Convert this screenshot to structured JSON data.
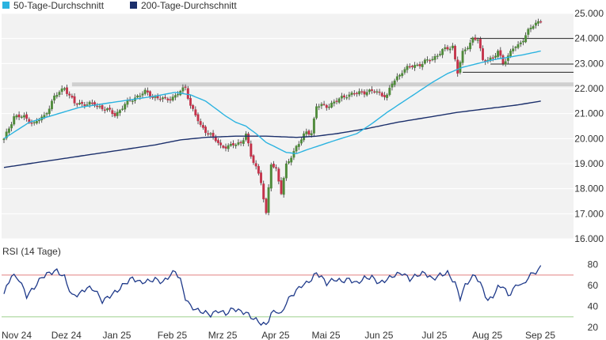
{
  "legend": {
    "sma50_label": "50-Tage-Durchschnitt",
    "sma200_label": "200-Tage-Durchschnitt"
  },
  "rsi_panel": {
    "title": "RSI (14 Tage)",
    "yticks": [
      "80",
      "60",
      "40",
      "20"
    ]
  },
  "colors": {
    "up": "#4f8a3a",
    "down": "#c4324a",
    "sma50": "#2bb3e0",
    "sma200": "#1b2f6b",
    "rsi_line": "#1f3a8a",
    "rsi_upper": "#e08080",
    "rsi_lower": "#9fd18f",
    "plot_bg": "#f2f2f2"
  },
  "chart_data": [
    {
      "type": "candlestick",
      "ylim": [
        16000,
        25000
      ],
      "yticks": [
        "25.000",
        "24.000",
        "23.000",
        "22.000",
        "21.000",
        "20.000",
        "19.000",
        "18.000",
        "17.000",
        "16.000"
      ],
      "xticks": [
        "Nov 24",
        "Dez 24",
        "Jan 25",
        "Feb 25",
        "Mrz 25",
        "Apr 25",
        "Mai 25",
        "Jun 25",
        "Jul 25",
        "Aug 25",
        "Sep 25"
      ],
      "xtick_pos": [
        0,
        21,
        41,
        63,
        83,
        104,
        124,
        145,
        167,
        188,
        209
      ],
      "n_days": 221,
      "horizontal_lines": [
        {
          "y": 22150,
          "x_from": 27,
          "x_to": 221,
          "style": "support-band"
        },
        {
          "y": 24000,
          "x_from": 185,
          "x_to": 221
        },
        {
          "y": 22980,
          "x_from": 193,
          "x_to": 221
        },
        {
          "y": 22650,
          "x_from": 182,
          "x_to": 221
        }
      ],
      "price_anchors": [
        [
          0,
          19950
        ],
        [
          4,
          20900
        ],
        [
          8,
          20850
        ],
        [
          12,
          20600
        ],
        [
          16,
          20900
        ],
        [
          20,
          21650
        ],
        [
          24,
          22050
        ],
        [
          28,
          21400
        ],
        [
          32,
          21400
        ],
        [
          36,
          21350
        ],
        [
          40,
          21200
        ],
        [
          44,
          20950
        ],
        [
          48,
          21350
        ],
        [
          52,
          21650
        ],
        [
          56,
          21850
        ],
        [
          60,
          21650
        ],
        [
          64,
          21550
        ],
        [
          68,
          21700
        ],
        [
          72,
          22050
        ],
        [
          74,
          21350
        ],
        [
          78,
          20500
        ],
        [
          82,
          20150
        ],
        [
          86,
          19700
        ],
        [
          90,
          19700
        ],
        [
          94,
          19850
        ],
        [
          96,
          20200
        ],
        [
          98,
          19250
        ],
        [
          100,
          18900
        ],
        [
          102,
          18300
        ],
        [
          104,
          16950
        ],
        [
          106,
          19000
        ],
        [
          108,
          18800
        ],
        [
          110,
          17850
        ],
        [
          112,
          18900
        ],
        [
          114,
          19300
        ],
        [
          116,
          19700
        ],
        [
          118,
          19950
        ],
        [
          120,
          20250
        ],
        [
          122,
          20250
        ],
        [
          124,
          21300
        ],
        [
          128,
          21300
        ],
        [
          132,
          21500
        ],
        [
          136,
          21750
        ],
        [
          140,
          21800
        ],
        [
          144,
          21900
        ],
        [
          148,
          21850
        ],
        [
          152,
          21700
        ],
        [
          154,
          22200
        ],
        [
          158,
          22700
        ],
        [
          162,
          22900
        ],
        [
          166,
          23000
        ],
        [
          170,
          23200
        ],
        [
          174,
          23500
        ],
        [
          178,
          23700
        ],
        [
          180,
          22650
        ],
        [
          182,
          23400
        ],
        [
          184,
          23700
        ],
        [
          186,
          24000
        ],
        [
          188,
          23950
        ],
        [
          190,
          23100
        ],
        [
          192,
          23200
        ],
        [
          194,
          23200
        ],
        [
          196,
          23450
        ],
        [
          198,
          23050
        ],
        [
          200,
          23300
        ],
        [
          202,
          23600
        ],
        [
          204,
          23700
        ],
        [
          206,
          24000
        ],
        [
          208,
          24300
        ],
        [
          210,
          24500
        ],
        [
          213,
          24750
        ]
      ],
      "sma50": [
        [
          0,
          20000
        ],
        [
          10,
          20650
        ],
        [
          20,
          20950
        ],
        [
          30,
          21250
        ],
        [
          40,
          21400
        ],
        [
          50,
          21550
        ],
        [
          60,
          21700
        ],
        [
          68,
          21850
        ],
        [
          74,
          21750
        ],
        [
          80,
          21500
        ],
        [
          84,
          21200
        ],
        [
          88,
          20900
        ],
        [
          92,
          20650
        ],
        [
          96,
          20500
        ],
        [
          100,
          20200
        ],
        [
          104,
          19850
        ],
        [
          108,
          19650
        ],
        [
          112,
          19450
        ],
        [
          116,
          19400
        ],
        [
          120,
          19550
        ],
        [
          126,
          19750
        ],
        [
          132,
          19950
        ],
        [
          140,
          20200
        ],
        [
          146,
          20600
        ],
        [
          152,
          21050
        ],
        [
          158,
          21450
        ],
        [
          164,
          21850
        ],
        [
          170,
          22250
        ],
        [
          176,
          22600
        ],
        [
          182,
          22850
        ],
        [
          188,
          23000
        ],
        [
          194,
          23150
        ],
        [
          200,
          23250
        ],
        [
          206,
          23350
        ],
        [
          213,
          23500
        ]
      ],
      "sma200": [
        [
          0,
          18850
        ],
        [
          20,
          19150
        ],
        [
          40,
          19450
        ],
        [
          60,
          19750
        ],
        [
          70,
          19950
        ],
        [
          80,
          20050
        ],
        [
          92,
          20100
        ],
        [
          104,
          20100
        ],
        [
          116,
          20050
        ],
        [
          124,
          20100
        ],
        [
          132,
          20200
        ],
        [
          144,
          20400
        ],
        [
          156,
          20650
        ],
        [
          168,
          20850
        ],
        [
          180,
          21050
        ],
        [
          192,
          21200
        ],
        [
          204,
          21350
        ],
        [
          213,
          21500
        ]
      ]
    },
    {
      "type": "line",
      "title": "RSI (14 Tage)",
      "ylim": [
        20,
        85
      ],
      "yticks": [
        80,
        60,
        40,
        20
      ],
      "reference_lines": [
        70,
        30
      ],
      "rsi_anchors": [
        [
          0,
          52
        ],
        [
          3,
          70
        ],
        [
          6,
          66
        ],
        [
          9,
          50
        ],
        [
          12,
          58
        ],
        [
          15,
          68
        ],
        [
          18,
          72
        ],
        [
          21,
          74
        ],
        [
          24,
          68
        ],
        [
          27,
          50
        ],
        [
          30,
          52
        ],
        [
          33,
          58
        ],
        [
          36,
          56
        ],
        [
          39,
          45
        ],
        [
          42,
          50
        ],
        [
          45,
          55
        ],
        [
          48,
          62
        ],
        [
          51,
          67
        ],
        [
          54,
          63
        ],
        [
          57,
          64
        ],
        [
          60,
          66
        ],
        [
          63,
          63
        ],
        [
          66,
          70
        ],
        [
          68,
          74
        ],
        [
          70,
          65
        ],
        [
          72,
          48
        ],
        [
          74,
          40
        ],
        [
          77,
          36
        ],
        [
          80,
          34
        ],
        [
          82,
          32
        ],
        [
          85,
          36
        ],
        [
          88,
          33
        ],
        [
          91,
          38
        ],
        [
          94,
          35
        ],
        [
          96,
          34
        ],
        [
          98,
          30
        ],
        [
          100,
          27
        ],
        [
          102,
          24
        ],
        [
          104,
          22
        ],
        [
          106,
          33
        ],
        [
          108,
          36
        ],
        [
          110,
          32
        ],
        [
          112,
          44
        ],
        [
          114,
          50
        ],
        [
          116,
          55
        ],
        [
          118,
          60
        ],
        [
          120,
          62
        ],
        [
          122,
          66
        ],
        [
          124,
          72
        ],
        [
          126,
          68
        ],
        [
          128,
          62
        ],
        [
          131,
          66
        ],
        [
          134,
          64
        ],
        [
          137,
          66
        ],
        [
          140,
          62
        ],
        [
          143,
          67
        ],
        [
          146,
          68
        ],
        [
          149,
          62
        ],
        [
          152,
          66
        ],
        [
          155,
          70
        ],
        [
          158,
          72
        ],
        [
          161,
          66
        ],
        [
          164,
          70
        ],
        [
          167,
          72
        ],
        [
          170,
          66
        ],
        [
          173,
          70
        ],
        [
          176,
          72
        ],
        [
          179,
          62
        ],
        [
          181,
          48
        ],
        [
          183,
          60
        ],
        [
          185,
          66
        ],
        [
          187,
          70
        ],
        [
          190,
          57
        ],
        [
          192,
          45
        ],
        [
          194,
          50
        ],
        [
          196,
          58
        ],
        [
          198,
          60
        ],
        [
          200,
          50
        ],
        [
          202,
          56
        ],
        [
          204,
          62
        ],
        [
          206,
          60
        ],
        [
          208,
          68
        ],
        [
          210,
          72
        ],
        [
          212,
          74
        ],
        [
          213,
          78
        ]
      ]
    }
  ]
}
